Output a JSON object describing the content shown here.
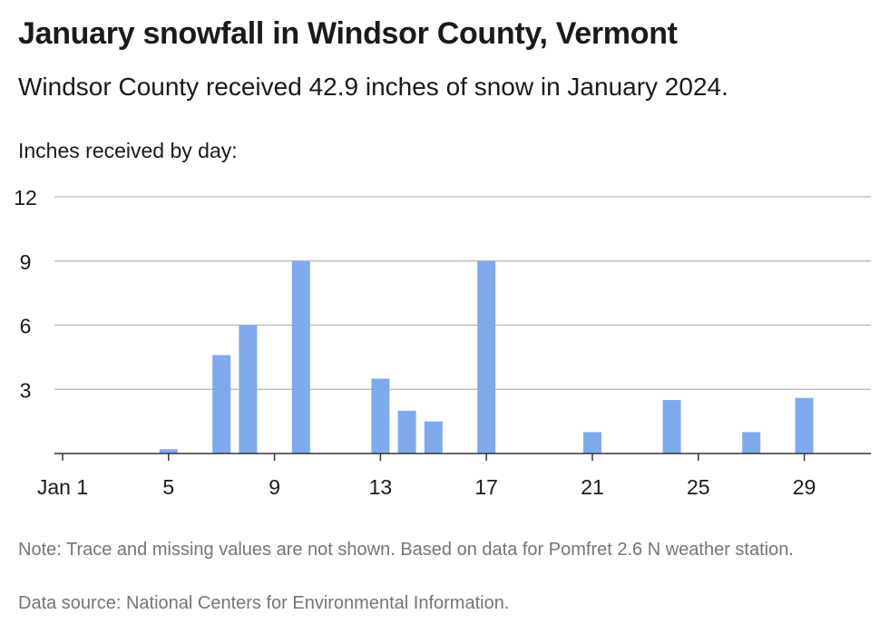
{
  "header": {
    "title": "January snowfall in Windsor County, Vermont",
    "subtitle": "Windsor County received 42.9 inches of snow in January 2024."
  },
  "footer": {
    "note": "Note: Trace and missing values are not shown. Based on data for Pomfret 2.6 N weather station.",
    "source": "Data source: National Centers for Environmental Information."
  },
  "colors": {
    "bar": "#7eaaed",
    "grid": "#b3b3b3",
    "axis": "#333333",
    "footer_text": "#757575"
  },
  "chart_data": {
    "type": "bar",
    "title": "January snowfall in Windsor County, Vermont",
    "subtitle": "Windsor County received 42.9 inches of snow in January 2024.",
    "ylabel": "Inches received by day:",
    "xlabel": "",
    "ylim": [
      0,
      12
    ],
    "yticks": [
      "3",
      "6",
      "9",
      "12"
    ],
    "xlim": [
      1,
      31
    ],
    "xticks": [
      {
        "day": 1,
        "label": "Jan 1"
      },
      {
        "day": 5,
        "label": "5"
      },
      {
        "day": 9,
        "label": "9"
      },
      {
        "day": 13,
        "label": "13"
      },
      {
        "day": 17,
        "label": "17"
      },
      {
        "day": 21,
        "label": "21"
      },
      {
        "day": 25,
        "label": "25"
      },
      {
        "day": 29,
        "label": "29"
      }
    ],
    "grid": true,
    "bars": [
      {
        "day": 5,
        "value": 0.2
      },
      {
        "day": 7,
        "value": 4.6
      },
      {
        "day": 8,
        "value": 6.0
      },
      {
        "day": 10,
        "value": 9.0
      },
      {
        "day": 13,
        "value": 3.5
      },
      {
        "day": 14,
        "value": 2.0
      },
      {
        "day": 15,
        "value": 1.5
      },
      {
        "day": 17,
        "value": 9.0
      },
      {
        "day": 21,
        "value": 1.0
      },
      {
        "day": 24,
        "value": 2.5
      },
      {
        "day": 27,
        "value": 1.0
      },
      {
        "day": 29,
        "value": 2.6
      }
    ]
  }
}
